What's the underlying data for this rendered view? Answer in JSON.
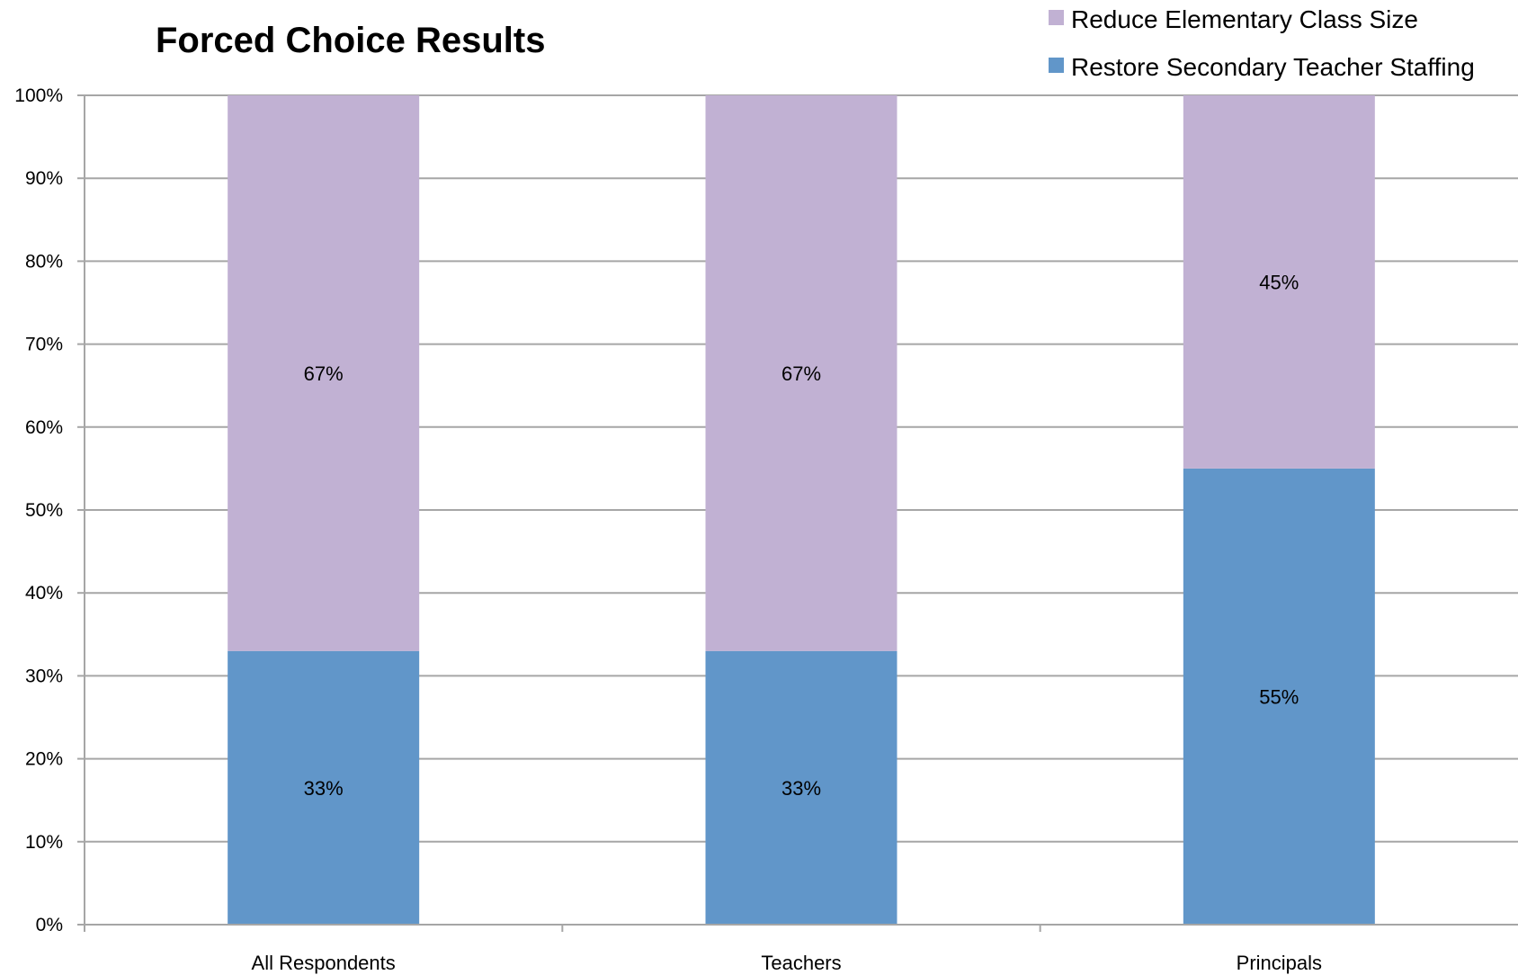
{
  "chart_data": {
    "type": "bar",
    "stacked": true,
    "percent": true,
    "title": "Forced Choice Results",
    "xlabel": "",
    "ylabel": "",
    "ylim": [
      0,
      100
    ],
    "yticks": [
      "0%",
      "10%",
      "20%",
      "30%",
      "40%",
      "50%",
      "60%",
      "70%",
      "80%",
      "90%",
      "100%"
    ],
    "categories": [
      "All Respondents",
      "Teachers",
      "Principals"
    ],
    "series": [
      {
        "name": "Restore Secondary Teacher Staffing",
        "values": [
          33,
          33,
          55
        ],
        "labels": [
          "33%",
          "33%",
          "55%"
        ],
        "color": "#6196c9"
      },
      {
        "name": "Reduce Elementary Class Size",
        "values": [
          67,
          67,
          45
        ],
        "labels": [
          "67%",
          "67%",
          "45%"
        ],
        "color": "#c1b1d3"
      }
    ],
    "legend": {
      "position": "top-right",
      "order": [
        "Reduce Elementary Class Size",
        "Restore Secondary Teacher Staffing"
      ]
    },
    "grid": true,
    "gridColor": "#a6a6a6"
  }
}
